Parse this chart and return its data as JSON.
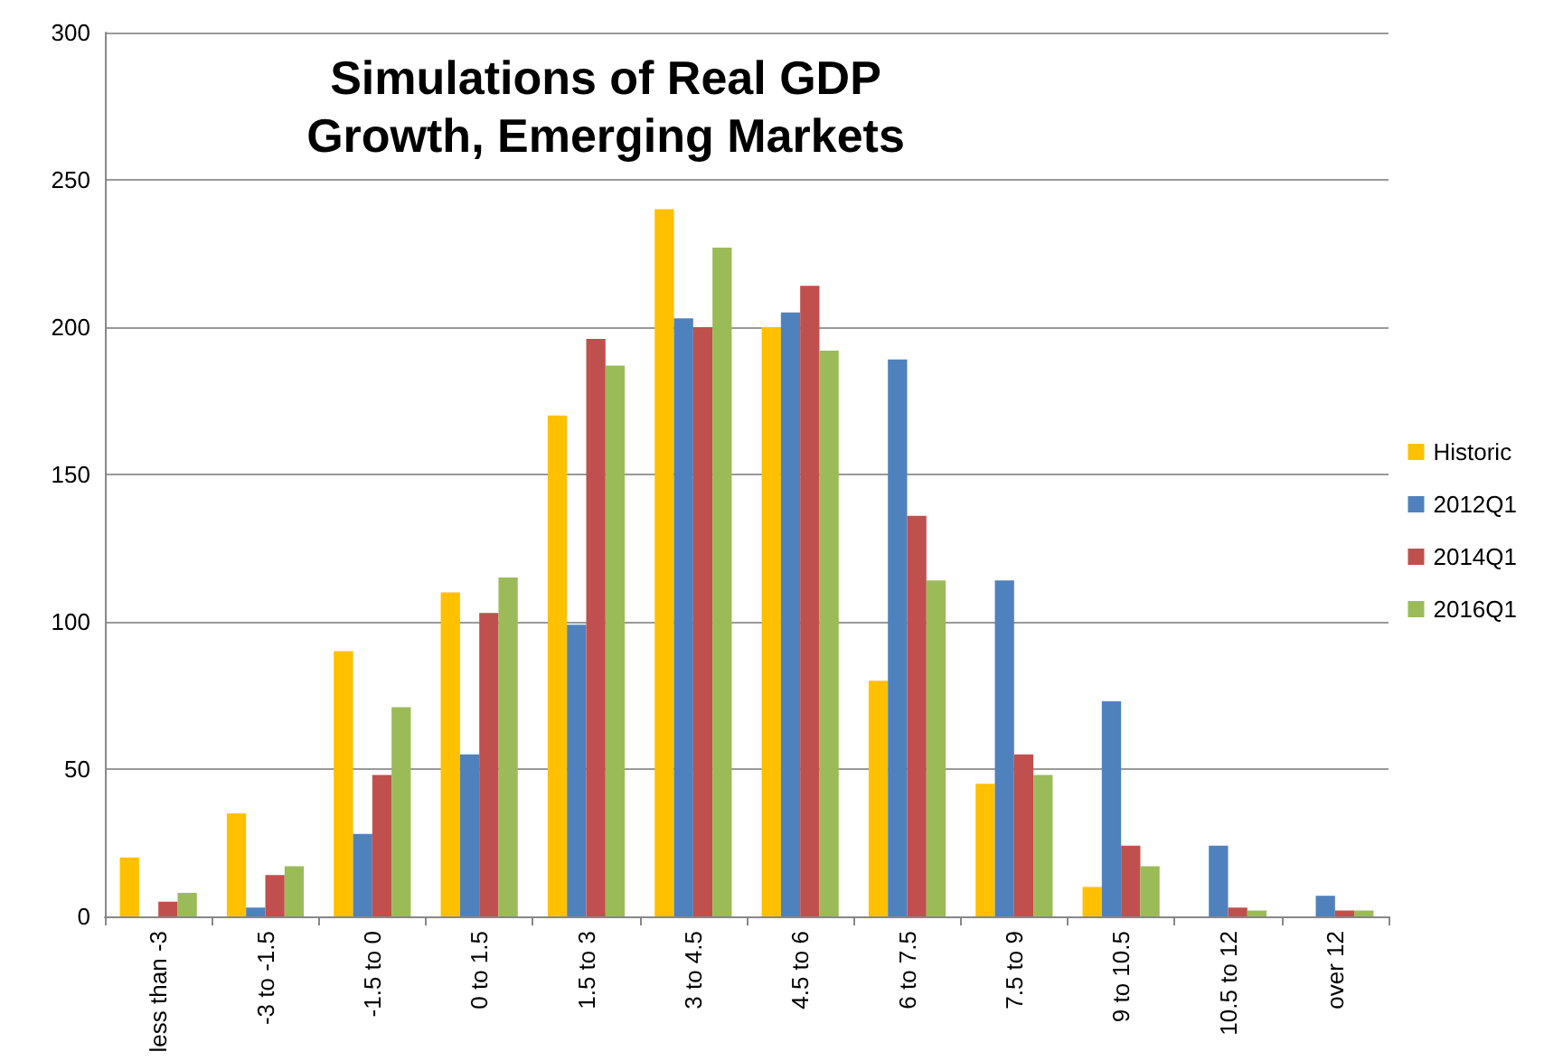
{
  "chart_data": {
    "type": "bar",
    "title": "Simulations of Real GDP\nGrowth, Emerging Markets",
    "categories": [
      "less than -3",
      "-3 to -1.5",
      "-1.5 to 0",
      "0 to 1.5",
      "1.5 to 3",
      "3 to 4.5",
      "4.5 to 6",
      "6 to 7.5",
      "7.5 to 9",
      "9 to 10.5",
      "10.5 to 12",
      "over 12"
    ],
    "series": [
      {
        "name": "Historic",
        "color": "#ffc000",
        "values": [
          20,
          35,
          90,
          110,
          170,
          240,
          200,
          80,
          45,
          10,
          0,
          0
        ]
      },
      {
        "name": "2012Q1",
        "color": "#4f81bd",
        "values": [
          0,
          3,
          28,
          55,
          99,
          203,
          205,
          189,
          114,
          73,
          24,
          7
        ]
      },
      {
        "name": "2014Q1",
        "color": "#c0504d",
        "values": [
          5,
          14,
          48,
          103,
          196,
          200,
          214,
          136,
          55,
          24,
          3,
          2
        ]
      },
      {
        "name": "2016Q1",
        "color": "#9bbb59",
        "values": [
          8,
          17,
          71,
          115,
          187,
          227,
          192,
          114,
          48,
          17,
          2,
          2
        ]
      }
    ],
    "ylim": [
      0,
      300
    ],
    "yticks": [
      0,
      50,
      100,
      150,
      200,
      250,
      300
    ],
    "grid": "y",
    "legend": "right"
  }
}
